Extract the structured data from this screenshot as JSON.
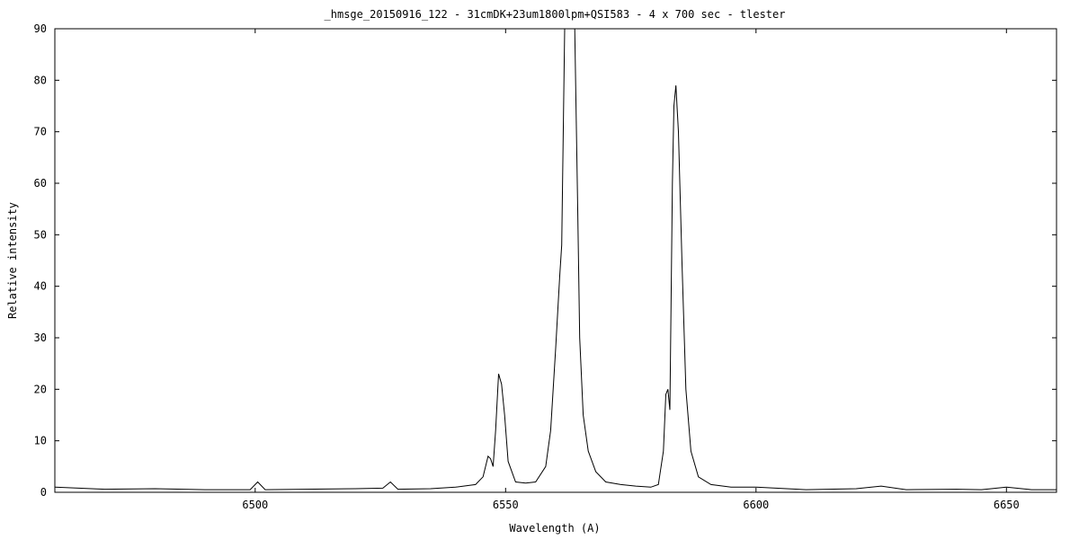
{
  "chart_data": {
    "type": "line",
    "title": "_hmsge_20150916_122 - 31cmDK+23um1800lpm+QSI583 - 4 x 700 sec - tlester",
    "xlabel": "Wavelength (A)",
    "ylabel": "Relative intensity",
    "xlim": [
      6460,
      6660
    ],
    "ylim": [
      0,
      90
    ],
    "xticks": [
      6500,
      6550,
      6600,
      6650
    ],
    "yticks": [
      0,
      10,
      20,
      30,
      40,
      50,
      60,
      70,
      80,
      90
    ],
    "grid": false,
    "legend": "none",
    "line_color": "#000000",
    "series": [
      {
        "x": [
          6460,
          6470,
          6480,
          6490,
          6499,
          6500.5,
          6502,
          6510,
          6520,
          6525.5,
          6527,
          6528.5,
          6535,
          6540,
          6544,
          6545.5,
          6546.5,
          6547,
          6547.5,
          6548,
          6548.6,
          6549.2,
          6549.8,
          6550.5,
          6552,
          6554,
          6556,
          6558,
          6559,
          6560,
          6560.8,
          6561.2,
          6561.8,
          6562.8,
          6563.8,
          6564.4,
          6564.8,
          6565.5,
          6566.5,
          6568,
          6570,
          6573,
          6576,
          6579,
          6580.5,
          6581.5,
          6582,
          6582.4,
          6582.8,
          6583.3,
          6583.6,
          6584,
          6584.5,
          6585.2,
          6586,
          6587,
          6588.5,
          6591,
          6595,
          6600,
          6610,
          6620,
          6625,
          6630,
          6640,
          6645,
          6650,
          6655,
          6660
        ],
        "y": [
          1.0,
          0.6,
          0.7,
          0.5,
          0.5,
          2.0,
          0.5,
          0.6,
          0.7,
          0.8,
          2.0,
          0.6,
          0.7,
          1.0,
          1.5,
          3.0,
          7.0,
          6.5,
          5.0,
          12.0,
          23.0,
          21.0,
          15.0,
          6.0,
          2.0,
          1.8,
          2.0,
          5.0,
          12.0,
          28.0,
          42.0,
          48.0,
          90.0,
          95.0,
          90.0,
          55.0,
          30.0,
          15.0,
          8.0,
          4.0,
          2.0,
          1.5,
          1.2,
          1.0,
          1.5,
          8.0,
          19.0,
          20.0,
          16.0,
          60.0,
          75.0,
          79.0,
          70.0,
          45.0,
          20.0,
          8.0,
          3.0,
          1.5,
          1.0,
          1.0,
          0.5,
          0.7,
          1.2,
          0.5,
          0.6,
          0.5,
          1.0,
          0.5,
          0.5
        ]
      }
    ]
  }
}
